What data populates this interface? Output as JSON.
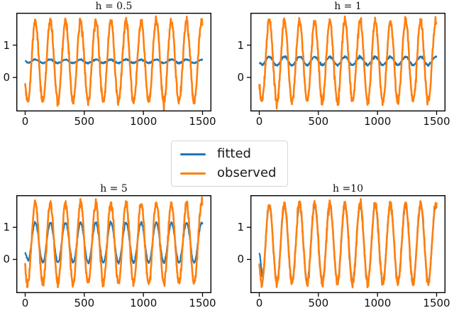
{
  "figure": {
    "background": "#ffffff",
    "text_color": "#111111",
    "spine_color": "#000000"
  },
  "legend": {
    "position": "center",
    "entries": [
      {
        "label": "fitted",
        "color": "#1f77b4"
      },
      {
        "label": "observed",
        "color": "#ff7f0e"
      }
    ]
  },
  "chart_data": [
    {
      "type": "line",
      "title": "h = 0.5",
      "xlim": [
        -75,
        1575
      ],
      "ylim": [
        -1.05,
        2.0
      ],
      "xticks": [
        0,
        500,
        1000,
        1500
      ],
      "xtick_labels": [
        "0",
        "500",
        "1000",
        "1500"
      ],
      "yticks": [
        0,
        1
      ],
      "ytick_labels": [
        "0",
        "1"
      ],
      "x_range": [
        0,
        1500
      ],
      "grid": false,
      "signal_period": 128,
      "signal_peak_x": 85,
      "series": [
        {
          "name": "fitted",
          "color": "#1f77b4",
          "mean": 0.5,
          "amplitude": 0.055,
          "noise_sd": 0.012,
          "start_value": 0.5,
          "linewidth": 2.2
        },
        {
          "name": "observed",
          "color": "#ff7f0e",
          "mean": 0.5,
          "amplitude": 1.25,
          "noise_sd": 0.065,
          "start_value": null,
          "linewidth": 2.6
        }
      ]
    },
    {
      "type": "line",
      "title": "h = 1",
      "xlim": [
        -75,
        1575
      ],
      "ylim": [
        -1.05,
        2.0
      ],
      "xticks": [
        0,
        500,
        1000,
        1500
      ],
      "xtick_labels": [
        "0",
        "500",
        "1000",
        "1500"
      ],
      "yticks": [
        0,
        1
      ],
      "ytick_labels": [
        "0",
        "1"
      ],
      "x_range": [
        0,
        1500
      ],
      "grid": false,
      "signal_period": 128,
      "signal_peak_x": 85,
      "series": [
        {
          "name": "fitted",
          "color": "#1f77b4",
          "mean": 0.51,
          "amplitude": 0.13,
          "noise_sd": 0.015,
          "start_value": 0.45,
          "linewidth": 2.2
        },
        {
          "name": "observed",
          "color": "#ff7f0e",
          "mean": 0.5,
          "amplitude": 1.25,
          "noise_sd": 0.065,
          "start_value": null,
          "linewidth": 2.6
        }
      ]
    },
    {
      "type": "line",
      "title": "h = 5",
      "xlim": [
        -75,
        1575
      ],
      "ylim": [
        -1.05,
        2.0
      ],
      "xticks": [
        0,
        500,
        1000,
        1500
      ],
      "xtick_labels": [
        "0",
        "500",
        "1000",
        "1500"
      ],
      "yticks": [
        0,
        1
      ],
      "ytick_labels": [
        "0",
        "1"
      ],
      "x_range": [
        0,
        1500
      ],
      "grid": false,
      "signal_period": 128,
      "signal_peak_x": 85,
      "series": [
        {
          "name": "fitted",
          "color": "#1f77b4",
          "mean": 0.52,
          "amplitude": 0.62,
          "noise_sd": 0.02,
          "start_value": 0.2,
          "linewidth": 2.2
        },
        {
          "name": "observed",
          "color": "#ff7f0e",
          "mean": 0.5,
          "amplitude": 1.25,
          "noise_sd": 0.065,
          "start_value": null,
          "linewidth": 2.6
        }
      ]
    },
    {
      "type": "line",
      "title": "h =10",
      "xlim": [
        -75,
        1575
      ],
      "ylim": [
        -1.05,
        2.0
      ],
      "xticks": [
        0,
        500,
        1000,
        1500
      ],
      "xtick_labels": [
        "0",
        "500",
        "1000",
        "1500"
      ],
      "yticks": [
        0,
        1
      ],
      "ytick_labels": [
        "0",
        "1"
      ],
      "x_range": [
        0,
        1500
      ],
      "grid": false,
      "signal_period": 128,
      "signal_peak_x": 85,
      "series": [
        {
          "name": "fitted",
          "color": "#1f77b4",
          "mean": 0.5,
          "amplitude": 1.18,
          "noise_sd": 0.02,
          "start_value": 0.2,
          "linewidth": 2.2
        },
        {
          "name": "observed",
          "color": "#ff7f0e",
          "mean": 0.5,
          "amplitude": 1.25,
          "noise_sd": 0.065,
          "start_value": null,
          "linewidth": 2.6
        }
      ]
    }
  ]
}
